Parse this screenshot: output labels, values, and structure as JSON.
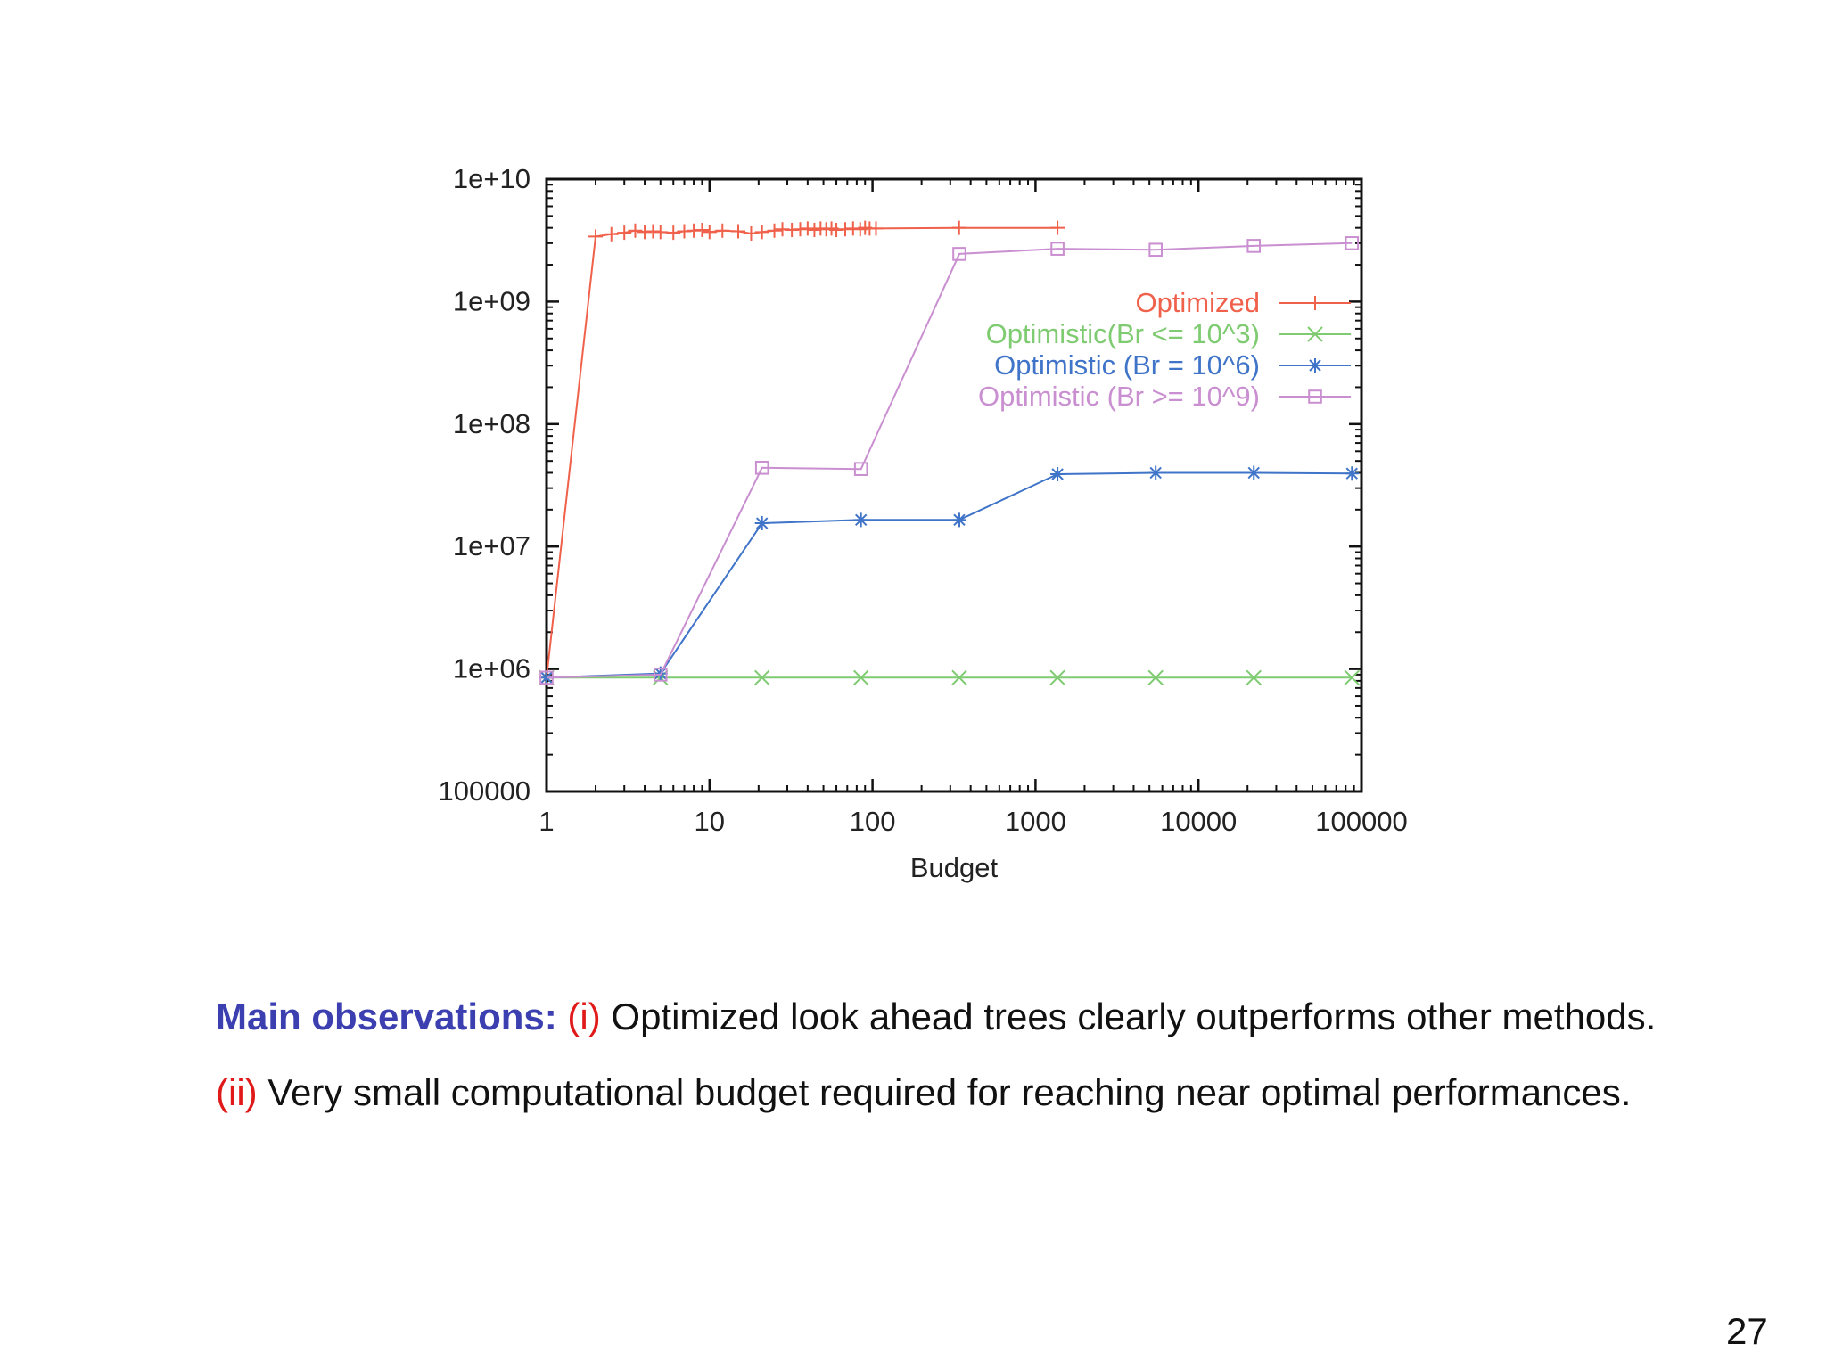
{
  "chart_data": {
    "type": "line",
    "xlabel": "Budget",
    "ylabel": "",
    "xscale": "log",
    "yscale": "log",
    "xlim": [
      1,
      100000
    ],
    "ylim": [
      100000,
      10000000000
    ],
    "xticks": [
      {
        "value": 1,
        "label": "1"
      },
      {
        "value": 10,
        "label": "10"
      },
      {
        "value": 100,
        "label": "100"
      },
      {
        "value": 1000,
        "label": "1000"
      },
      {
        "value": 10000,
        "label": "10000"
      },
      {
        "value": 100000,
        "label": "100000"
      }
    ],
    "yticks": [
      {
        "value": 100000,
        "label": "100000"
      },
      {
        "value": 1000000,
        "label": "1e+06"
      },
      {
        "value": 10000000,
        "label": "1e+07"
      },
      {
        "value": 100000000,
        "label": "1e+08"
      },
      {
        "value": 1000000000,
        "label": "1e+09"
      },
      {
        "value": 10000000000,
        "label": "1e+10"
      }
    ],
    "grid": false,
    "legend_position": "inside-right",
    "series": [
      {
        "name": "Optimized",
        "color": "#f0614b",
        "marker": "plus",
        "points": [
          [
            1,
            850000
          ],
          [
            2,
            3400000000
          ],
          [
            2.5,
            3550000000
          ],
          [
            3,
            3650000000
          ],
          [
            3.5,
            3800000000
          ],
          [
            4,
            3700000000
          ],
          [
            4.5,
            3750000000
          ],
          [
            5,
            3700000000
          ],
          [
            6,
            3650000000
          ],
          [
            7,
            3750000000
          ],
          [
            8,
            3800000000
          ],
          [
            9,
            3850000000
          ],
          [
            10,
            3700000000
          ],
          [
            12,
            3800000000
          ],
          [
            15,
            3750000000
          ],
          [
            18,
            3600000000
          ],
          [
            21,
            3700000000
          ],
          [
            25,
            3800000000
          ],
          [
            28,
            3900000000
          ],
          [
            32,
            3850000000
          ],
          [
            36,
            3900000000
          ],
          [
            40,
            3950000000
          ],
          [
            44,
            3850000000
          ],
          [
            48,
            3950000000
          ],
          [
            52,
            3900000000
          ],
          [
            56,
            3950000000
          ],
          [
            60,
            3850000000
          ],
          [
            68,
            3900000000
          ],
          [
            76,
            3950000000
          ],
          [
            84,
            3900000000
          ],
          [
            90,
            4000000000
          ],
          [
            96,
            3950000000
          ],
          [
            105,
            3950000000
          ],
          [
            340,
            4000000000
          ],
          [
            1365,
            4000000000
          ]
        ]
      },
      {
        "name": "Optimistic(Br <= 10^3)",
        "color": "#7fcb72",
        "marker": "cross",
        "points": [
          [
            1,
            850000
          ],
          [
            5,
            850000
          ],
          [
            21,
            850000
          ],
          [
            85,
            850000
          ],
          [
            341,
            850000
          ],
          [
            1365,
            850000
          ],
          [
            5461,
            850000
          ],
          [
            21845,
            850000
          ],
          [
            87381,
            850000
          ]
        ]
      },
      {
        "name": "Optimistic (Br = 10^6)",
        "color": "#3f74c8",
        "marker": "star",
        "points": [
          [
            1,
            850000
          ],
          [
            5,
            920000
          ],
          [
            21,
            15500000
          ],
          [
            85,
            16500000
          ],
          [
            341,
            16500000
          ],
          [
            1365,
            39000000
          ],
          [
            5461,
            40000000
          ],
          [
            21845,
            40000000
          ],
          [
            87381,
            39500000
          ]
        ]
      },
      {
        "name": "Optimistic (Br >= 10^9)",
        "color": "#c98fd0",
        "marker": "square",
        "points": [
          [
            1,
            850000
          ],
          [
            5,
            900000
          ],
          [
            21,
            44000000
          ],
          [
            85,
            43000000
          ],
          [
            341,
            2450000000
          ],
          [
            1365,
            2700000000
          ],
          [
            5461,
            2650000000
          ],
          [
            21845,
            2850000000
          ],
          [
            87381,
            3000000000
          ]
        ]
      }
    ]
  },
  "observations": {
    "lead": "Main observations:",
    "item1_num": "(i)",
    "item1_text": "Optimized look ahead trees clearly outperforms other methods.",
    "item2_num": "(ii)",
    "item2_text": "Very small computational budget required for reaching near optimal performances."
  },
  "page_number": "27"
}
